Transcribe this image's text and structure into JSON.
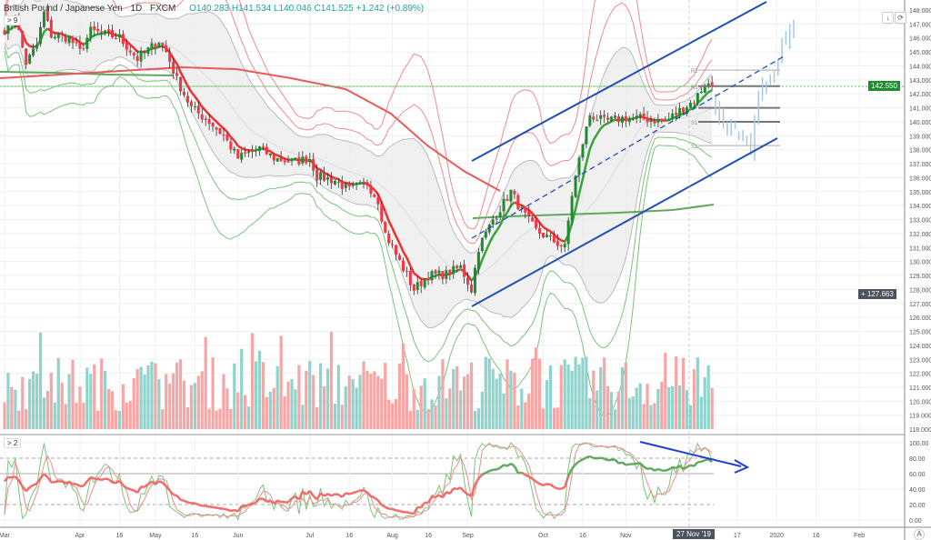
{
  "header": {
    "symbol": "British Pound / Japanese Yen",
    "interval": "1D",
    "exchange": "FXCM",
    "ohlc": "O140.283 H141.534 L140.046 C141.525 +1.242 (+0.89%)"
  },
  "panes": {
    "main_toggle": "> 9",
    "osc_toggle": "> 2"
  },
  "toolbar": {
    "download_icon": "↓",
    "reset_icon": "⟳",
    "auto_label": "A"
  },
  "price_labels": {
    "last": "142.550",
    "crosshair": "127.663",
    "crosshair_icon": "+"
  },
  "cursor_date": "27 Nov '19",
  "pivots": {
    "R2": "R2",
    "R1": "R1",
    "S1": "S1",
    "S2": "S2"
  },
  "colors": {
    "up": "#1e8c2e",
    "down": "#f23645",
    "vol_up": "#8fd3cc",
    "vol_down": "#f7a6a6",
    "channel": "#1f4fb4",
    "last": "#1e8c2e"
  },
  "chart_data": {
    "type": "candlestick",
    "title": "British Pound / Japanese Yen 1D FXCM",
    "ylim": [
      118,
      148
    ],
    "price_ticks": [
      "148.000",
      "147.000",
      "146.000",
      "145.000",
      "144.000",
      "143.000",
      "142.000",
      "141.000",
      "140.000",
      "139.000",
      "138.000",
      "137.000",
      "136.000",
      "135.000",
      "134.000",
      "133.000",
      "132.000",
      "131.000",
      "130.000",
      "129.000",
      "128.000",
      "127.000",
      "126.000",
      "125.000",
      "124.000",
      "123.000",
      "122.000",
      "121.000",
      "120.000",
      "119.000",
      "118.000"
    ],
    "osc_ticks": [
      "100.00",
      "80.00",
      "60.00",
      "40.00",
      "20.00",
      "0.00"
    ],
    "x_ticks": [
      {
        "label": "Mar",
        "bar": 0
      },
      {
        "label": "Apr",
        "bar": 21
      },
      {
        "label": "16",
        "bar": 32
      },
      {
        "label": "May",
        "bar": 42
      },
      {
        "label": "16",
        "bar": 53
      },
      {
        "label": "Jun",
        "bar": 65
      },
      {
        "label": "Jul",
        "bar": 85
      },
      {
        "label": "16",
        "bar": 96
      },
      {
        "label": "Aug",
        "bar": 108
      },
      {
        "label": "16",
        "bar": 118
      },
      {
        "label": "Sep",
        "bar": 129
      },
      {
        "label": "Oct",
        "bar": 150
      },
      {
        "label": "16",
        "bar": 161
      },
      {
        "label": "Nov",
        "bar": 173
      },
      {
        "label": "17",
        "bar": 204
      },
      {
        "label": "2020",
        "bar": 215
      },
      {
        "label": "16",
        "bar": 226
      },
      {
        "label": "Feb",
        "bar": 238
      }
    ],
    "close_keypoints": [
      [
        0,
        146.6
      ],
      [
        3,
        147.5
      ],
      [
        6,
        144.2
      ],
      [
        9,
        145.5
      ],
      [
        11,
        147.8
      ],
      [
        13,
        146.2
      ],
      [
        18,
        146
      ],
      [
        21,
        145
      ],
      [
        24,
        146.5
      ],
      [
        32,
        146
      ],
      [
        37,
        144.5
      ],
      [
        43,
        145.8
      ],
      [
        45,
        145
      ],
      [
        48,
        143
      ],
      [
        52,
        141
      ],
      [
        57,
        140
      ],
      [
        61,
        139
      ],
      [
        65,
        137.4
      ],
      [
        71,
        138.1
      ],
      [
        75,
        137.4
      ],
      [
        80,
        137.1
      ],
      [
        85,
        137.4
      ],
      [
        87,
        136.1
      ],
      [
        92,
        135.8
      ],
      [
        96,
        135.1
      ],
      [
        101,
        135.6
      ],
      [
        104,
        134.4
      ],
      [
        106,
        132
      ],
      [
        110,
        130
      ],
      [
        114,
        128
      ],
      [
        118,
        129
      ],
      [
        123,
        129.1
      ],
      [
        127,
        129.6
      ],
      [
        130,
        128
      ],
      [
        132,
        131
      ],
      [
        136,
        133
      ],
      [
        141,
        135
      ],
      [
        144,
        133.6
      ],
      [
        148,
        132.2
      ],
      [
        152,
        131.6
      ],
      [
        156,
        131
      ],
      [
        158,
        134.8
      ],
      [
        161,
        138.5
      ],
      [
        163,
        140.5
      ],
      [
        167,
        140
      ],
      [
        173,
        140.3
      ],
      [
        179,
        140.2
      ],
      [
        184,
        140
      ],
      [
        189,
        141
      ],
      [
        192,
        141.5
      ],
      [
        195,
        142.7
      ],
      [
        197,
        142.55
      ]
    ],
    "last_price": 142.55,
    "pivot_levels": {
      "R2": 143.7,
      "R1": 142.55,
      "P": 141.0,
      "S1": 140.0,
      "S2": 138.3
    }
  }
}
